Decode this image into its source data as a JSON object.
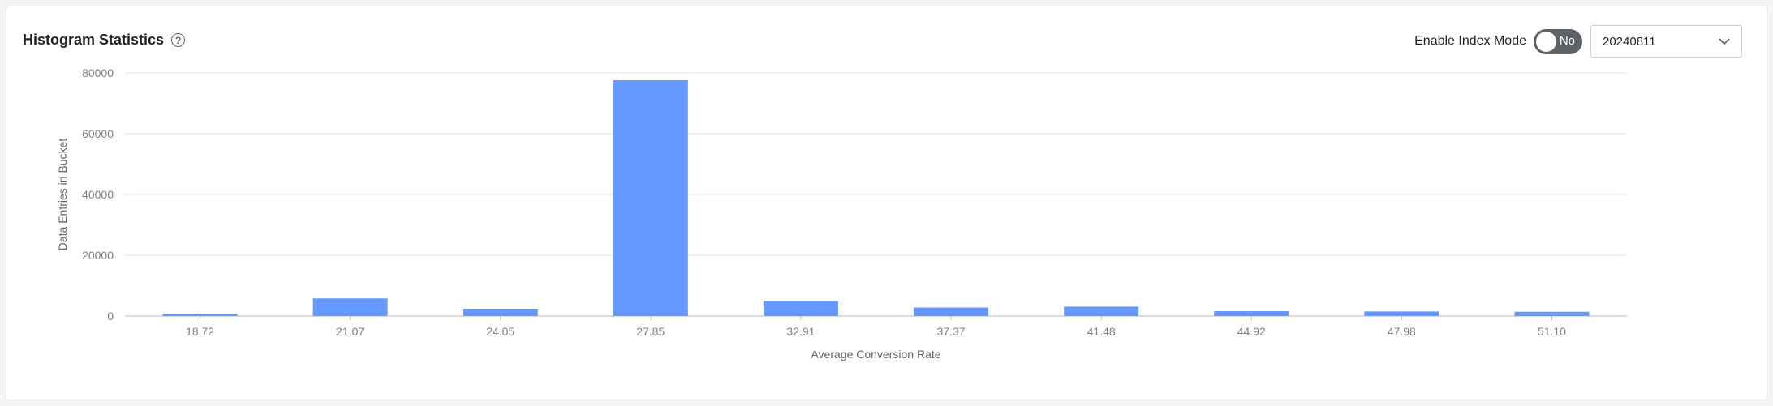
{
  "header": {
    "title": "Histogram Statistics",
    "help_icon": "question-circle-icon",
    "toggle_label": "Enable Index Mode",
    "toggle_state": "No",
    "select_value": "20240811",
    "select_icon": "chevron-down-icon"
  },
  "chart_data": {
    "type": "bar",
    "xlabel": "Average Conversion Rate",
    "ylabel": "Data Entries in Bucket",
    "categories": [
      "18.72",
      "21.07",
      "24.05",
      "27.85",
      "32.91",
      "37.37",
      "41.48",
      "44.92",
      "47.98",
      "51.10"
    ],
    "values": [
      700,
      5800,
      2400,
      77600,
      4900,
      2800,
      3100,
      1600,
      1500,
      1400
    ],
    "ylim": [
      0,
      80000
    ],
    "yticks": [
      "0",
      "20000",
      "40000",
      "60000",
      "80000"
    ],
    "grid": true,
    "bar_color": "#6699ff"
  }
}
